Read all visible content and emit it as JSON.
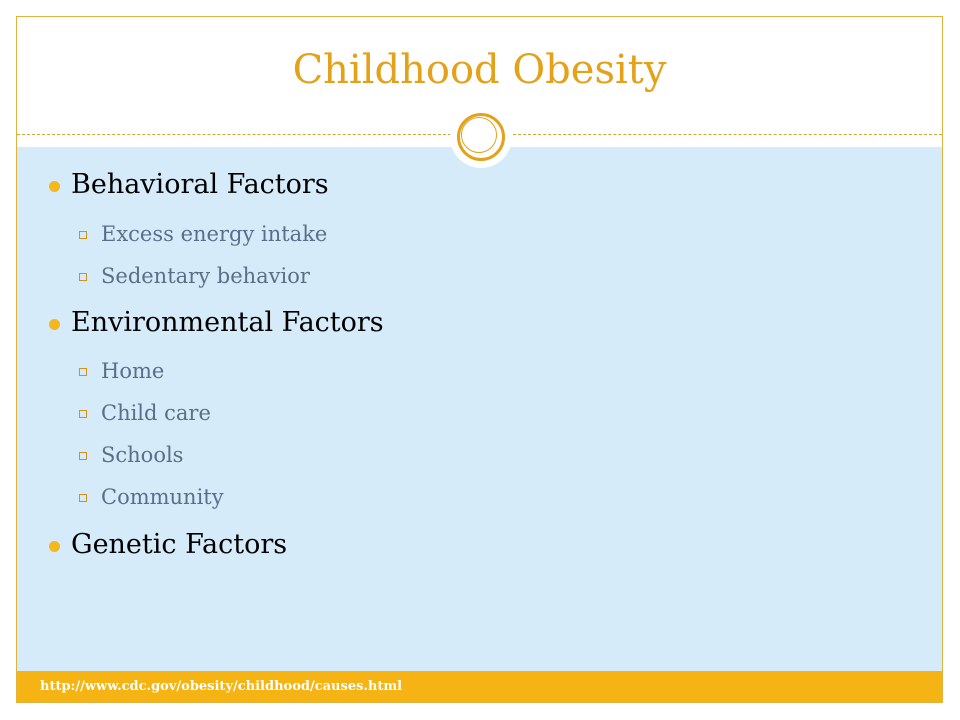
{
  "slide": {
    "title": "Childhood Obesity",
    "items": [
      {
        "label": "Behavioral Factors",
        "subitems": [
          "Excess energy intake",
          "Sedentary behavior"
        ]
      },
      {
        "label": "Environmental Factors",
        "subitems": [
          "Home",
          "Child care",
          "Schools",
          "Community"
        ]
      },
      {
        "label": "Genetic Factors",
        "subitems": []
      }
    ],
    "footer_url": "http://www.cdc.gov/obesity/childhood/causes.html"
  },
  "colors": {
    "accent": "#e3a21a",
    "content_background": "#d5ebfa",
    "footer_background": "#f6b414",
    "subitem_text": "#5b6e87"
  },
  "icons": {
    "level1_bullet": "filled-circle-bullet-icon",
    "level2_bullet": "hollow-square-bullet-icon",
    "divider_ornament": "double-ring-icon"
  }
}
